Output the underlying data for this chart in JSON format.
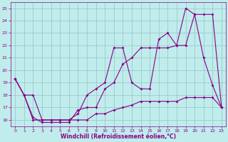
{
  "title": "",
  "xlabel": "Windchill (Refroidissement éolien,°C)",
  "ylabel": "",
  "xlim": [
    -0.5,
    23.5
  ],
  "ylim": [
    15.5,
    25.5
  ],
  "xticks": [
    0,
    1,
    2,
    3,
    4,
    5,
    6,
    7,
    8,
    9,
    10,
    11,
    12,
    13,
    14,
    15,
    16,
    17,
    18,
    19,
    20,
    21,
    22,
    23
  ],
  "yticks": [
    16,
    17,
    18,
    19,
    20,
    21,
    22,
    23,
    24,
    25
  ],
  "bg_color": "#c0ecec",
  "grid_color": "#90c4c4",
  "line_color": "#880088",
  "line1_x": [
    0,
    1,
    2,
    3,
    4,
    5,
    6,
    7,
    8,
    9,
    10,
    11,
    12,
    13,
    14,
    15,
    16,
    17,
    18,
    19,
    20,
    21,
    22,
    23
  ],
  "line1_y": [
    19.3,
    18.0,
    18.0,
    16.0,
    16.0,
    16.0,
    16.0,
    16.5,
    18.0,
    18.5,
    19.0,
    21.8,
    21.8,
    19.0,
    18.5,
    18.5,
    22.5,
    23.0,
    22.0,
    25.0,
    24.5,
    21.0,
    18.8,
    17.0
  ],
  "line2_x": [
    0,
    1,
    2,
    3,
    4,
    5,
    6,
    7,
    8,
    9,
    10,
    11,
    12,
    13,
    14,
    15,
    16,
    17,
    18,
    19,
    20,
    21,
    22,
    23
  ],
  "line2_y": [
    19.3,
    18.0,
    16.2,
    15.8,
    15.8,
    15.8,
    15.8,
    16.8,
    17.0,
    17.0,
    18.5,
    19.0,
    20.5,
    21.0,
    21.8,
    21.8,
    21.8,
    21.8,
    22.0,
    22.0,
    24.5,
    24.5,
    24.5,
    17.0
  ],
  "line3_x": [
    0,
    1,
    2,
    3,
    4,
    5,
    6,
    7,
    8,
    9,
    10,
    11,
    12,
    13,
    14,
    15,
    16,
    17,
    18,
    19,
    20,
    21,
    22,
    23
  ],
  "line3_y": [
    19.3,
    18.0,
    16.0,
    16.0,
    16.0,
    16.0,
    16.0,
    16.0,
    16.0,
    16.5,
    16.5,
    16.8,
    17.0,
    17.2,
    17.5,
    17.5,
    17.5,
    17.5,
    17.5,
    17.8,
    17.8,
    17.8,
    17.8,
    17.0
  ],
  "tick_fontsize": 4.5,
  "xlabel_fontsize": 5.5,
  "marker_size": 2.0,
  "line_width": 0.8
}
